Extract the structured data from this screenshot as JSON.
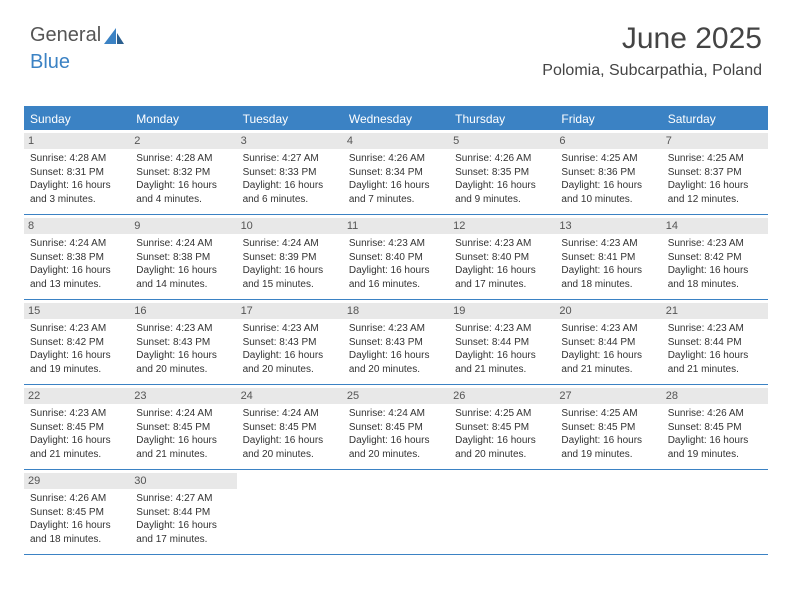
{
  "brand": {
    "word1": "General",
    "word2": "Blue"
  },
  "title": "June 2025",
  "location": "Polomia, Subcarpathia, Poland",
  "colors": {
    "accent": "#3b82c4",
    "header_text": "#ffffff",
    "daynum_bg": "#e8e8e8",
    "text": "#333333",
    "border": "#3b82c4"
  },
  "day_names": [
    "Sunday",
    "Monday",
    "Tuesday",
    "Wednesday",
    "Thursday",
    "Friday",
    "Saturday"
  ],
  "weeks": [
    [
      {
        "n": "1",
        "sunrise": "Sunrise: 4:28 AM",
        "sunset": "Sunset: 8:31 PM",
        "day1": "Daylight: 16 hours",
        "day2": "and 3 minutes."
      },
      {
        "n": "2",
        "sunrise": "Sunrise: 4:28 AM",
        "sunset": "Sunset: 8:32 PM",
        "day1": "Daylight: 16 hours",
        "day2": "and 4 minutes."
      },
      {
        "n": "3",
        "sunrise": "Sunrise: 4:27 AM",
        "sunset": "Sunset: 8:33 PM",
        "day1": "Daylight: 16 hours",
        "day2": "and 6 minutes."
      },
      {
        "n": "4",
        "sunrise": "Sunrise: 4:26 AM",
        "sunset": "Sunset: 8:34 PM",
        "day1": "Daylight: 16 hours",
        "day2": "and 7 minutes."
      },
      {
        "n": "5",
        "sunrise": "Sunrise: 4:26 AM",
        "sunset": "Sunset: 8:35 PM",
        "day1": "Daylight: 16 hours",
        "day2": "and 9 minutes."
      },
      {
        "n": "6",
        "sunrise": "Sunrise: 4:25 AM",
        "sunset": "Sunset: 8:36 PM",
        "day1": "Daylight: 16 hours",
        "day2": "and 10 minutes."
      },
      {
        "n": "7",
        "sunrise": "Sunrise: 4:25 AM",
        "sunset": "Sunset: 8:37 PM",
        "day1": "Daylight: 16 hours",
        "day2": "and 12 minutes."
      }
    ],
    [
      {
        "n": "8",
        "sunrise": "Sunrise: 4:24 AM",
        "sunset": "Sunset: 8:38 PM",
        "day1": "Daylight: 16 hours",
        "day2": "and 13 minutes."
      },
      {
        "n": "9",
        "sunrise": "Sunrise: 4:24 AM",
        "sunset": "Sunset: 8:38 PM",
        "day1": "Daylight: 16 hours",
        "day2": "and 14 minutes."
      },
      {
        "n": "10",
        "sunrise": "Sunrise: 4:24 AM",
        "sunset": "Sunset: 8:39 PM",
        "day1": "Daylight: 16 hours",
        "day2": "and 15 minutes."
      },
      {
        "n": "11",
        "sunrise": "Sunrise: 4:23 AM",
        "sunset": "Sunset: 8:40 PM",
        "day1": "Daylight: 16 hours",
        "day2": "and 16 minutes."
      },
      {
        "n": "12",
        "sunrise": "Sunrise: 4:23 AM",
        "sunset": "Sunset: 8:40 PM",
        "day1": "Daylight: 16 hours",
        "day2": "and 17 minutes."
      },
      {
        "n": "13",
        "sunrise": "Sunrise: 4:23 AM",
        "sunset": "Sunset: 8:41 PM",
        "day1": "Daylight: 16 hours",
        "day2": "and 18 minutes."
      },
      {
        "n": "14",
        "sunrise": "Sunrise: 4:23 AM",
        "sunset": "Sunset: 8:42 PM",
        "day1": "Daylight: 16 hours",
        "day2": "and 18 minutes."
      }
    ],
    [
      {
        "n": "15",
        "sunrise": "Sunrise: 4:23 AM",
        "sunset": "Sunset: 8:42 PM",
        "day1": "Daylight: 16 hours",
        "day2": "and 19 minutes."
      },
      {
        "n": "16",
        "sunrise": "Sunrise: 4:23 AM",
        "sunset": "Sunset: 8:43 PM",
        "day1": "Daylight: 16 hours",
        "day2": "and 20 minutes."
      },
      {
        "n": "17",
        "sunrise": "Sunrise: 4:23 AM",
        "sunset": "Sunset: 8:43 PM",
        "day1": "Daylight: 16 hours",
        "day2": "and 20 minutes."
      },
      {
        "n": "18",
        "sunrise": "Sunrise: 4:23 AM",
        "sunset": "Sunset: 8:43 PM",
        "day1": "Daylight: 16 hours",
        "day2": "and 20 minutes."
      },
      {
        "n": "19",
        "sunrise": "Sunrise: 4:23 AM",
        "sunset": "Sunset: 8:44 PM",
        "day1": "Daylight: 16 hours",
        "day2": "and 21 minutes."
      },
      {
        "n": "20",
        "sunrise": "Sunrise: 4:23 AM",
        "sunset": "Sunset: 8:44 PM",
        "day1": "Daylight: 16 hours",
        "day2": "and 21 minutes."
      },
      {
        "n": "21",
        "sunrise": "Sunrise: 4:23 AM",
        "sunset": "Sunset: 8:44 PM",
        "day1": "Daylight: 16 hours",
        "day2": "and 21 minutes."
      }
    ],
    [
      {
        "n": "22",
        "sunrise": "Sunrise: 4:23 AM",
        "sunset": "Sunset: 8:45 PM",
        "day1": "Daylight: 16 hours",
        "day2": "and 21 minutes."
      },
      {
        "n": "23",
        "sunrise": "Sunrise: 4:24 AM",
        "sunset": "Sunset: 8:45 PM",
        "day1": "Daylight: 16 hours",
        "day2": "and 21 minutes."
      },
      {
        "n": "24",
        "sunrise": "Sunrise: 4:24 AM",
        "sunset": "Sunset: 8:45 PM",
        "day1": "Daylight: 16 hours",
        "day2": "and 20 minutes."
      },
      {
        "n": "25",
        "sunrise": "Sunrise: 4:24 AM",
        "sunset": "Sunset: 8:45 PM",
        "day1": "Daylight: 16 hours",
        "day2": "and 20 minutes."
      },
      {
        "n": "26",
        "sunrise": "Sunrise: 4:25 AM",
        "sunset": "Sunset: 8:45 PM",
        "day1": "Daylight: 16 hours",
        "day2": "and 20 minutes."
      },
      {
        "n": "27",
        "sunrise": "Sunrise: 4:25 AM",
        "sunset": "Sunset: 8:45 PM",
        "day1": "Daylight: 16 hours",
        "day2": "and 19 minutes."
      },
      {
        "n": "28",
        "sunrise": "Sunrise: 4:26 AM",
        "sunset": "Sunset: 8:45 PM",
        "day1": "Daylight: 16 hours",
        "day2": "and 19 minutes."
      }
    ],
    [
      {
        "n": "29",
        "sunrise": "Sunrise: 4:26 AM",
        "sunset": "Sunset: 8:45 PM",
        "day1": "Daylight: 16 hours",
        "day2": "and 18 minutes."
      },
      {
        "n": "30",
        "sunrise": "Sunrise: 4:27 AM",
        "sunset": "Sunset: 8:44 PM",
        "day1": "Daylight: 16 hours",
        "day2": "and 17 minutes."
      },
      null,
      null,
      null,
      null,
      null
    ]
  ]
}
